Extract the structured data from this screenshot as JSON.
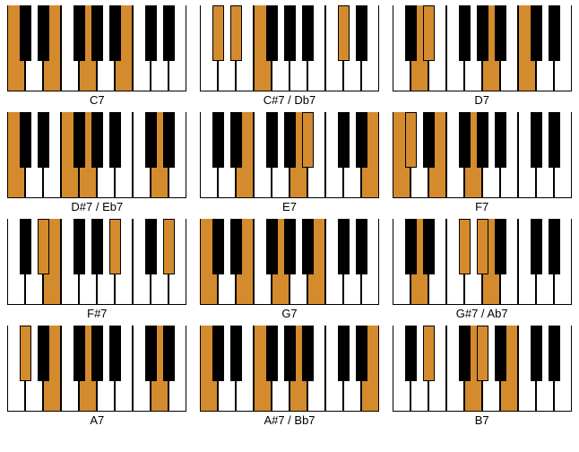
{
  "layout": {
    "keyboard_width": 200,
    "keyboard_height": 95,
    "black_key_height": 62,
    "black_key_width": 13,
    "white_keys": 10,
    "colors": {
      "highlight": "#d38b2d",
      "black_key": "#000000",
      "white_key": "#ffffff",
      "border": "#000000",
      "text": "#000000",
      "background": "#ffffff"
    },
    "label_fontsize": 13,
    "black_key_positions": [
      14,
      34,
      74,
      94,
      114,
      154,
      174
    ]
  },
  "chords": [
    {
      "label": "C7",
      "white_hl": [
        0,
        2,
        4,
        6
      ],
      "black_hl": []
    },
    {
      "label": "C#7 / Db7",
      "white_hl": [
        3
      ],
      "black_hl": [
        0,
        1,
        5
      ]
    },
    {
      "label": "D7",
      "white_hl": [
        1,
        5,
        7
      ],
      "black_hl": [
        1
      ]
    },
    {
      "label": "D#7 / Eb7",
      "white_hl": [
        0,
        3,
        4,
        8
      ],
      "black_hl": []
    },
    {
      "label": "E7",
      "white_hl": [
        2,
        5,
        9
      ],
      "black_hl": [
        4
      ]
    },
    {
      "label": "F7",
      "white_hl": [
        0,
        2,
        4
      ],
      "black_hl": [
        0
      ]
    },
    {
      "label": "F#7",
      "white_hl": [
        2
      ],
      "black_hl": [
        1,
        4,
        6
      ]
    },
    {
      "label": "G7",
      "white_hl": [
        0,
        2,
        4,
        6
      ],
      "black_hl": []
    },
    {
      "label": "G#7 / Ab7",
      "white_hl": [
        1,
        5
      ],
      "black_hl": [
        2,
        3
      ]
    },
    {
      "label": "A7",
      "white_hl": [
        2,
        4,
        8
      ],
      "black_hl": [
        0
      ]
    },
    {
      "label": "A#7 / Bb7",
      "white_hl": [
        0,
        3,
        5,
        9
      ],
      "black_hl": []
    },
    {
      "label": "B7",
      "white_hl": [
        4,
        6
      ],
      "black_hl": [
        1,
        3
      ]
    }
  ]
}
